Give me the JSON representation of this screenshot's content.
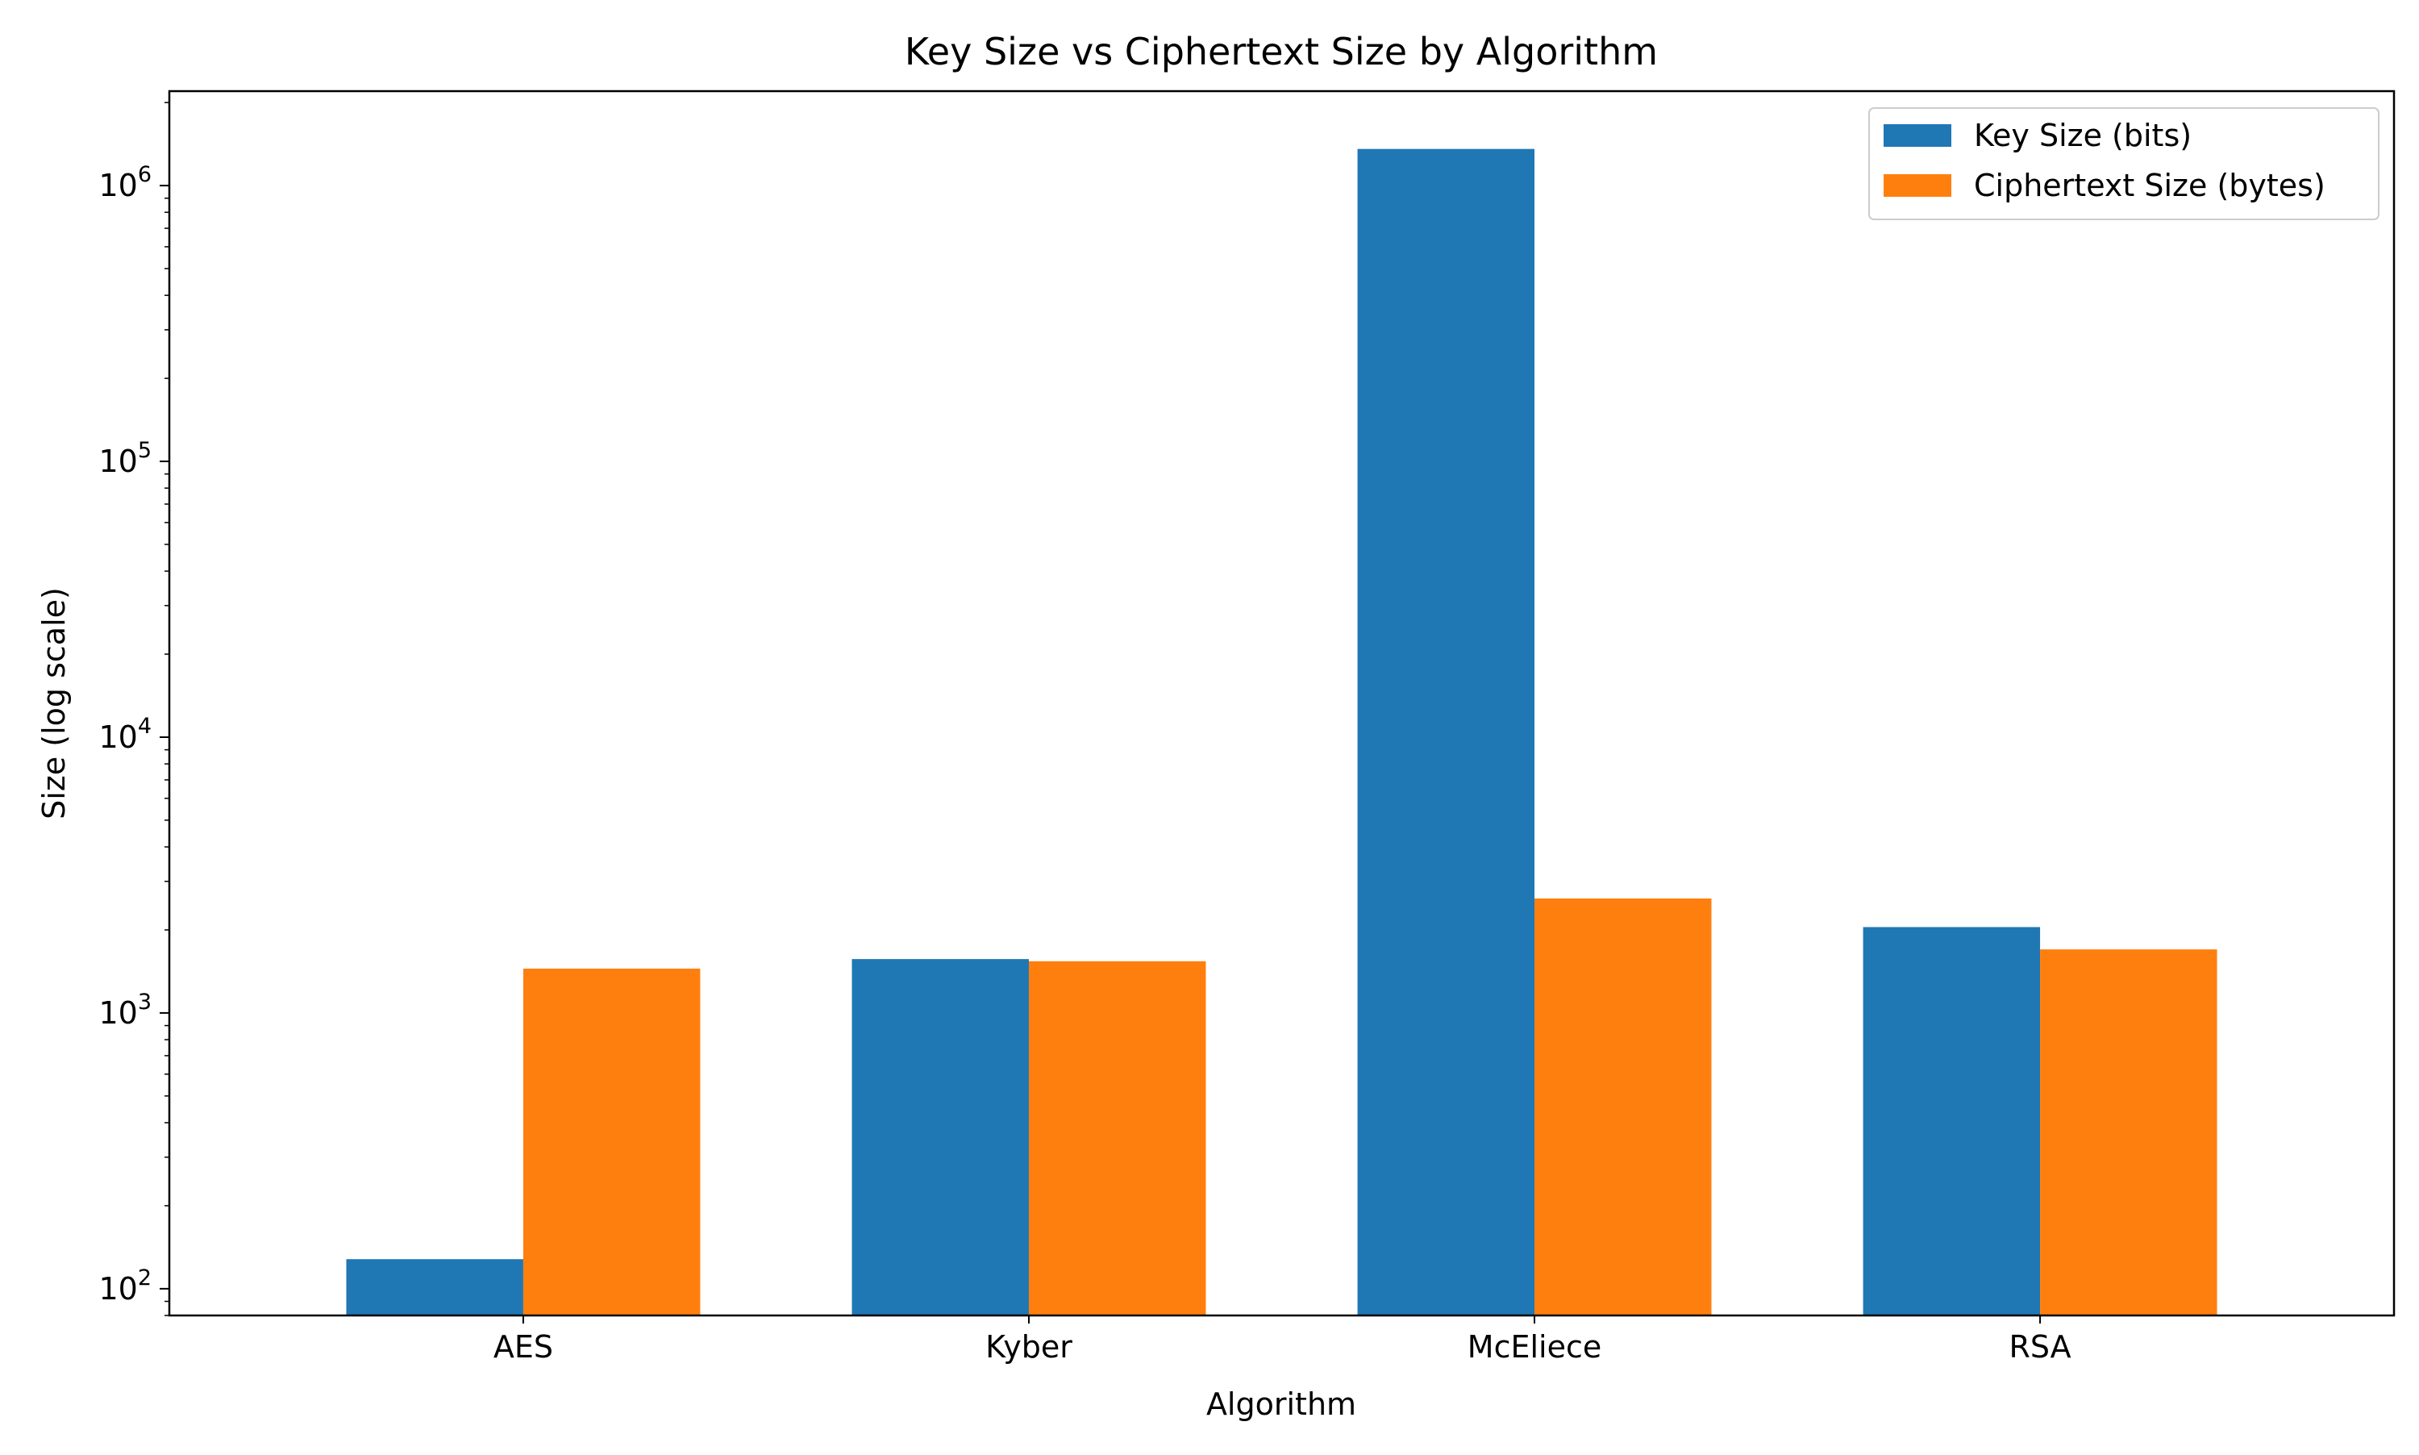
{
  "chart_data": {
    "type": "bar",
    "title": "Key Size vs Ciphertext Size by Algorithm",
    "xlabel": "Algorithm",
    "ylabel": "Size (log scale)",
    "yscale": "log",
    "ylim": [
      80,
      2200000
    ],
    "y_ticks": [
      {
        "value": 100,
        "base": "10",
        "exp": "2"
      },
      {
        "value": 1000,
        "base": "10",
        "exp": "3"
      },
      {
        "value": 10000,
        "base": "10",
        "exp": "4"
      },
      {
        "value": 100000,
        "base": "10",
        "exp": "5"
      },
      {
        "value": 1000000,
        "base": "10",
        "exp": "6"
      }
    ],
    "categories": [
      "AES",
      "Kyber",
      "McEliece",
      "RSA"
    ],
    "series": [
      {
        "name": "Key Size (bits)",
        "color": "#1f77b4",
        "values": [
          128,
          1568,
          1357824,
          2048
        ]
      },
      {
        "name": "Ciphertext Size (bytes)",
        "color": "#ff7f0e",
        "values": [
          1448,
          1540,
          2600,
          1700
        ]
      }
    ],
    "grid": false,
    "legend_position": "top-right"
  }
}
